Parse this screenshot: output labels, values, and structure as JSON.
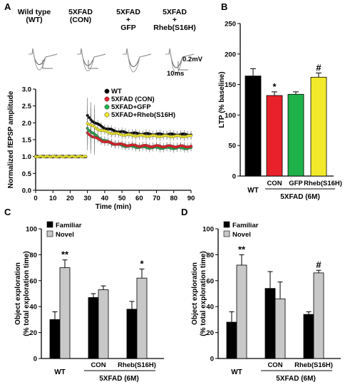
{
  "panels": {
    "a": "A",
    "b": "B",
    "c": "C",
    "d": "D"
  },
  "chart_data": [
    {
      "id": "A-traces",
      "type": "line",
      "headers": [
        "Wild type\n(WT)",
        "5XFAD\n(CON)",
        "5XFAD\n+\nGFP",
        "5XFAD\n+\nRheb(S16H)"
      ],
      "scale_labels": [
        "0.2mV",
        "10ms"
      ]
    },
    {
      "id": "A",
      "type": "line",
      "xlabel": "Time (min)",
      "ylabel": "Normalized fEPSP amplitude",
      "xlim": [
        0,
        90
      ],
      "ylim": [
        0,
        3.0
      ],
      "xticks": [
        0,
        10,
        20,
        30,
        40,
        50,
        60,
        70,
        80,
        90
      ],
      "yticks": [
        0.0,
        0.5,
        1.0,
        1.5,
        2.0,
        2.5,
        3.0
      ],
      "legend_position": "top-right",
      "series": [
        {
          "name": "WT",
          "color": "#000000",
          "baseline": 1.0,
          "peak": 2.2,
          "end": 1.65
        },
        {
          "name": "5XFAD (CON)",
          "color": "#e8212a",
          "baseline": 1.0,
          "peak": 1.7,
          "end": 1.3
        },
        {
          "name": "5XFAD+GFP",
          "color": "#1fb24a",
          "baseline": 1.0,
          "peak": 1.85,
          "end": 1.25
        },
        {
          "name": "5XFAD+Rheb(S16H)",
          "color": "#f2e92b",
          "baseline": 1.0,
          "peak": 2.0,
          "end": 1.6
        }
      ]
    },
    {
      "id": "B",
      "type": "bar",
      "ylabel": "LTP (% baseline)",
      "ylim": [
        0,
        250
      ],
      "yticks": [
        0,
        50,
        100,
        150,
        200,
        250
      ],
      "categories": [
        "WT",
        "CON",
        "GFP",
        "Rheb(S16H)"
      ],
      "values": [
        164,
        132,
        134,
        162
      ],
      "errors": [
        12,
        6,
        4,
        7
      ],
      "colors": [
        "#000000",
        "#e8212a",
        "#1fb24a",
        "#f2e92b"
      ],
      "annotations": [
        "",
        "*",
        "",
        "#"
      ],
      "group_label": "5XFAD (6M)"
    },
    {
      "id": "C",
      "type": "bar",
      "ylabel": "Object exploration\n(% total exploration time)",
      "ylim": [
        0,
        100
      ],
      "yticks": [
        0,
        20,
        40,
        60,
        80,
        100
      ],
      "categories": [
        "WT",
        "CON",
        "Rheb(S16H)"
      ],
      "legend_position": "top-left",
      "series": [
        {
          "name": "Familiar",
          "color": "#000000",
          "values": [
            30,
            47,
            38
          ],
          "errors": [
            6,
            3,
            6
          ]
        },
        {
          "name": "Novel",
          "color": "#c8c8c8",
          "values": [
            70,
            53,
            62
          ],
          "errors": [
            6,
            3,
            7
          ]
        }
      ],
      "annotations": [
        "**",
        "",
        "*"
      ],
      "group_label": "5XFAD (6M)"
    },
    {
      "id": "D",
      "type": "bar",
      "ylabel": "Object exploration\n(% total exploration time)",
      "ylim": [
        0,
        100
      ],
      "yticks": [
        0,
        20,
        40,
        60,
        80,
        100
      ],
      "categories": [
        "WT",
        "CON",
        "Rheb(S16H)"
      ],
      "legend_position": "top-left",
      "series": [
        {
          "name": "Familiar",
          "color": "#000000",
          "values": [
            28,
            54,
            34
          ],
          "errors": [
            8,
            13,
            2
          ]
        },
        {
          "name": "Novel",
          "color": "#c8c8c8",
          "values": [
            72,
            46,
            66
          ],
          "errors": [
            8,
            13,
            2
          ]
        }
      ],
      "annotations": [
        "**",
        "",
        "#"
      ],
      "group_label": "5XFAD (6M)"
    }
  ]
}
